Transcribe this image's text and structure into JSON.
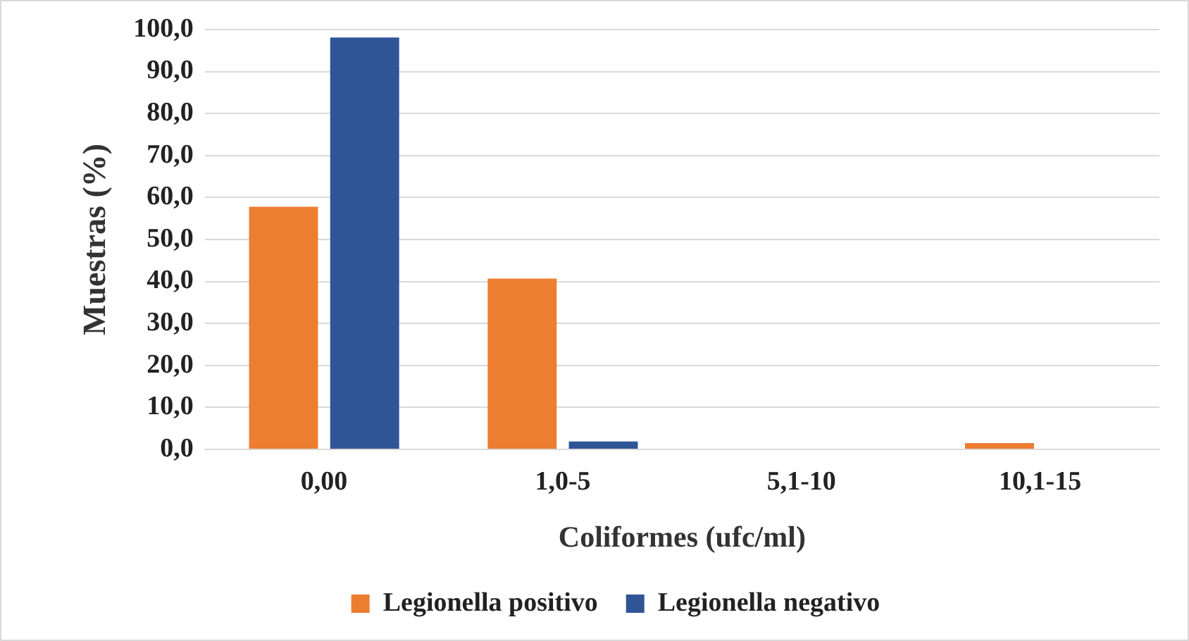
{
  "chart_data": {
    "type": "bar",
    "xlabel": "Coliformes (ufc/ml)",
    "ylabel": "Muestras (%)",
    "categories": [
      "0,00",
      "1,0-5",
      "5,1-10",
      "10,1-15"
    ],
    "series": [
      {
        "name": "Legionella positivo",
        "color": "#ed7d31",
        "values": [
          57.8,
          40.7,
          0,
          1.5
        ]
      },
      {
        "name": "Legionella negativo",
        "color": "#2f5597",
        "values": [
          98.1,
          1.9,
          0,
          0
        ]
      }
    ],
    "ylim": [
      0,
      100
    ],
    "yticks": [
      {
        "value": 0,
        "label": "0,0"
      },
      {
        "value": 10,
        "label": "10,0"
      },
      {
        "value": 20,
        "label": "20,0"
      },
      {
        "value": 30,
        "label": "30,0"
      },
      {
        "value": 40,
        "label": "40,0"
      },
      {
        "value": 50,
        "label": "50,0"
      },
      {
        "value": 60,
        "label": "60,0"
      },
      {
        "value": 70,
        "label": "70,0"
      },
      {
        "value": 80,
        "label": "80,0"
      },
      {
        "value": 90,
        "label": "90,0"
      },
      {
        "value": 100,
        "label": "100,0"
      }
    ],
    "grid": "y",
    "legend": "bottom"
  }
}
